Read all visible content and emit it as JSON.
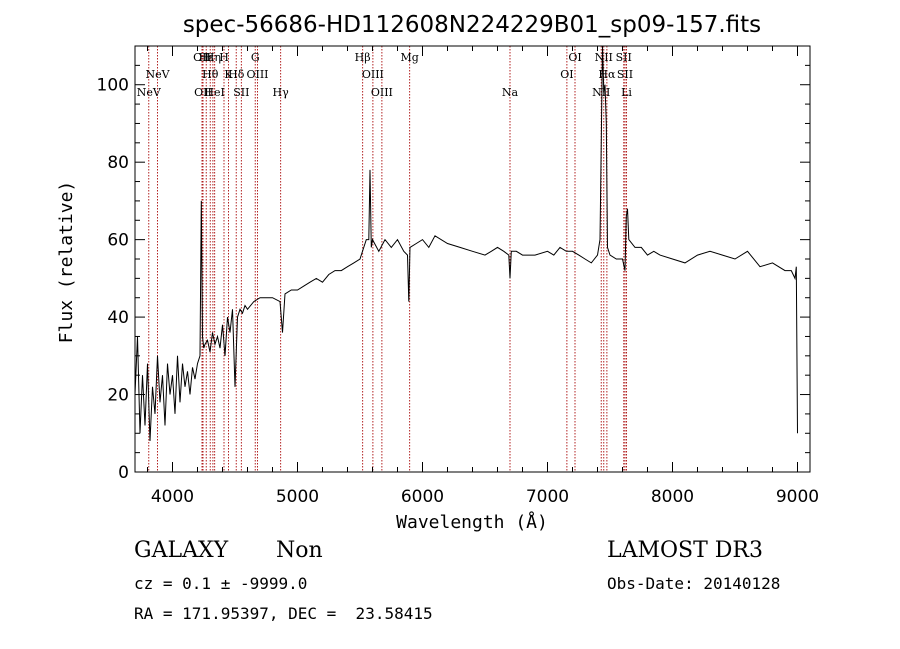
{
  "chart_data": {
    "type": "line",
    "title": "spec-56686-HD112608N224229B01_sp09-157.fits",
    "xlabel": "Wavelength (Å)",
    "ylabel": "Flux (relative)",
    "xlim": [
      3700,
      9100
    ],
    "ylim": [
      0,
      110
    ],
    "xticks": [
      4000,
      5000,
      6000,
      7000,
      8000,
      9000
    ],
    "yticks": [
      0,
      20,
      40,
      60,
      80,
      100
    ],
    "grid": false,
    "series": [
      {
        "color": "#000000",
        "x": [
          3700,
          3720,
          3740,
          3760,
          3780,
          3800,
          3820,
          3840,
          3860,
          3880,
          3900,
          3920,
          3940,
          3960,
          3980,
          4000,
          4020,
          4040,
          4060,
          4080,
          4100,
          4120,
          4140,
          4160,
          4180,
          4200,
          4220,
          4230,
          4240,
          4250,
          4260,
          4280,
          4300,
          4320,
          4340,
          4360,
          4380,
          4400,
          4420,
          4440,
          4460,
          4480,
          4500,
          4520,
          4540,
          4560,
          4580,
          4600,
          4650,
          4700,
          4750,
          4800,
          4860,
          4880,
          4900,
          4950,
          5000,
          5050,
          5100,
          5150,
          5200,
          5250,
          5300,
          5350,
          5400,
          5450,
          5500,
          5550,
          5570,
          5580,
          5590,
          5600,
          5650,
          5700,
          5750,
          5800,
          5850,
          5880,
          5890,
          5900,
          5950,
          6000,
          6050,
          6100,
          6200,
          6300,
          6400,
          6500,
          6550,
          6600,
          6650,
          6690,
          6700,
          6710,
          6750,
          6800,
          6900,
          7000,
          7050,
          7100,
          7150,
          7200,
          7250,
          7300,
          7350,
          7400,
          7420,
          7440,
          7450,
          7460,
          7470,
          7480,
          7500,
          7550,
          7600,
          7620,
          7630,
          7640,
          7650,
          7700,
          7750,
          7800,
          7850,
          7900,
          8000,
          8100,
          8200,
          8300,
          8400,
          8500,
          8600,
          8700,
          8800,
          8900,
          8950,
          8980,
          8990,
          9000
        ],
        "y": [
          20,
          35,
          10,
          25,
          12,
          28,
          8,
          22,
          15,
          30,
          18,
          25,
          12,
          28,
          20,
          25,
          15,
          30,
          18,
          28,
          22,
          26,
          20,
          27,
          24,
          28,
          30,
          70,
          35,
          32,
          33,
          34,
          31,
          36,
          33,
          35,
          32,
          38,
          30,
          40,
          36,
          42,
          22,
          40,
          42,
          41,
          43,
          42,
          44,
          45,
          45,
          45,
          44,
          36,
          46,
          47,
          47,
          48,
          49,
          50,
          49,
          51,
          52,
          52,
          53,
          54,
          55,
          60,
          60,
          78,
          58,
          60,
          57,
          60,
          58,
          60,
          57,
          56,
          44,
          58,
          59,
          60,
          58,
          61,
          59,
          58,
          57,
          56,
          57,
          58,
          57,
          56,
          50,
          57,
          57,
          56,
          56,
          57,
          56,
          58,
          57,
          57,
          56,
          55,
          54,
          56,
          60,
          110,
          98,
          100,
          90,
          58,
          56,
          55,
          55,
          52,
          66,
          68,
          60,
          58,
          58,
          56,
          57,
          56,
          55,
          54,
          56,
          57,
          56,
          55,
          57,
          53,
          54,
          52,
          52,
          50,
          53,
          10
        ]
      }
    ],
    "line_markers": [
      {
        "wavelength": 3810,
        "label": "NeV",
        "row": 3
      },
      {
        "wavelength": 3880,
        "label": "NeV",
        "row": 2
      },
      {
        "wavelength": 4236,
        "label": "OII",
        "row": 1
      },
      {
        "wavelength": 4244,
        "label": "OII",
        "row": 3
      },
      {
        "wavelength": 4270,
        "label": "Hε",
        "row": 1
      },
      {
        "wavelength": 4302,
        "label": "Hθ",
        "row": 2
      },
      {
        "wavelength": 4323,
        "label": "Hη",
        "row": 1
      },
      {
        "wavelength": 4337,
        "label": "HeI",
        "row": 3
      },
      {
        "wavelength": 4412,
        "label": "H",
        "row": 1
      },
      {
        "wavelength": 4448,
        "label": "K",
        "row": 2
      },
      {
        "wavelength": 4510,
        "label": "Hδ",
        "row": 2
      },
      {
        "wavelength": 4551,
        "label": "SII",
        "row": 3
      },
      {
        "wavelength": 4662,
        "label": "G",
        "row": 1
      },
      {
        "wavelength": 4680,
        "label": "OIII",
        "row": 2
      },
      {
        "wavelength": 4865,
        "label": "Hγ",
        "row": 3
      },
      {
        "wavelength": 5521,
        "label": "Hβ",
        "row": 1
      },
      {
        "wavelength": 5603,
        "label": "OIII",
        "row": 2
      },
      {
        "wavelength": 5675,
        "label": "OIII",
        "row": 3
      },
      {
        "wavelength": 5897,
        "label": "Mg",
        "row": 1
      },
      {
        "wavelength": 6700,
        "label": "Na",
        "row": 3
      },
      {
        "wavelength": 7155,
        "label": "OI",
        "row": 2
      },
      {
        "wavelength": 7220,
        "label": "OI",
        "row": 1
      },
      {
        "wavelength": 7430,
        "label": "NII",
        "row": 3
      },
      {
        "wavelength": 7450,
        "label": "NII",
        "row": 1
      },
      {
        "wavelength": 7475,
        "label": "Hα",
        "row": 2
      },
      {
        "wavelength": 7610,
        "label": "SII",
        "row": 1
      },
      {
        "wavelength": 7620,
        "label": "SII",
        "row": 2
      },
      {
        "wavelength": 7632,
        "label": "Li",
        "row": 3
      }
    ],
    "marker_color": "#b22222"
  },
  "info": {
    "class_label": "GALAXY",
    "subclass_label": "Non",
    "survey": "LAMOST DR3",
    "cz_text": "cz = 0.1 ± -9999.0",
    "obs_date_text": "Obs-Date: 20140128",
    "coord_text": "RA = 171.95397, DEC =  23.58415"
  }
}
